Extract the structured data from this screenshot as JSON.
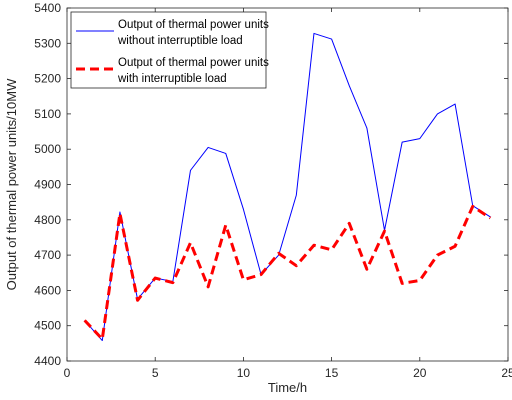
{
  "chart_data": {
    "type": "line",
    "title": "",
    "xlabel": "Time/h",
    "ylabel": "Output of thermal power units/10MW",
    "xlim": [
      0,
      25
    ],
    "ylim": [
      4400,
      5400
    ],
    "xticks": [
      0,
      5,
      10,
      15,
      20,
      25
    ],
    "yticks": [
      4400,
      4500,
      4600,
      4700,
      4800,
      4900,
      5000,
      5100,
      5200,
      5300,
      5400
    ],
    "grid": false,
    "legend_position": "top-left",
    "x": [
      1,
      2,
      3,
      4,
      5,
      6,
      7,
      8,
      9,
      10,
      11,
      12,
      13,
      14,
      15,
      16,
      17,
      18,
      19,
      20,
      21,
      22,
      23,
      24
    ],
    "series": [
      {
        "name_line1": "Output of thermal power units",
        "name_line2": "without interruptible load",
        "color": "#0000ff",
        "style": "solid",
        "values": [
          4515,
          4458,
          4822,
          4575,
          4635,
          4625,
          4940,
          5005,
          4988,
          4830,
          4645,
          4700,
          4870,
          5328,
          5312,
          5180,
          5060,
          4770,
          5020,
          5030,
          5100,
          5128,
          4840,
          4808
        ]
      },
      {
        "name_line1": "Output of thermal power units",
        "name_line2": "with interruptible load",
        "color": "#ff0000",
        "style": "dashed",
        "values": [
          4515,
          4462,
          4818,
          4572,
          4635,
          4622,
          4735,
          4610,
          4785,
          4630,
          4645,
          4705,
          4670,
          4728,
          4715,
          4790,
          4660,
          4768,
          4620,
          4628,
          4700,
          4725,
          4838,
          4805
        ]
      }
    ]
  }
}
